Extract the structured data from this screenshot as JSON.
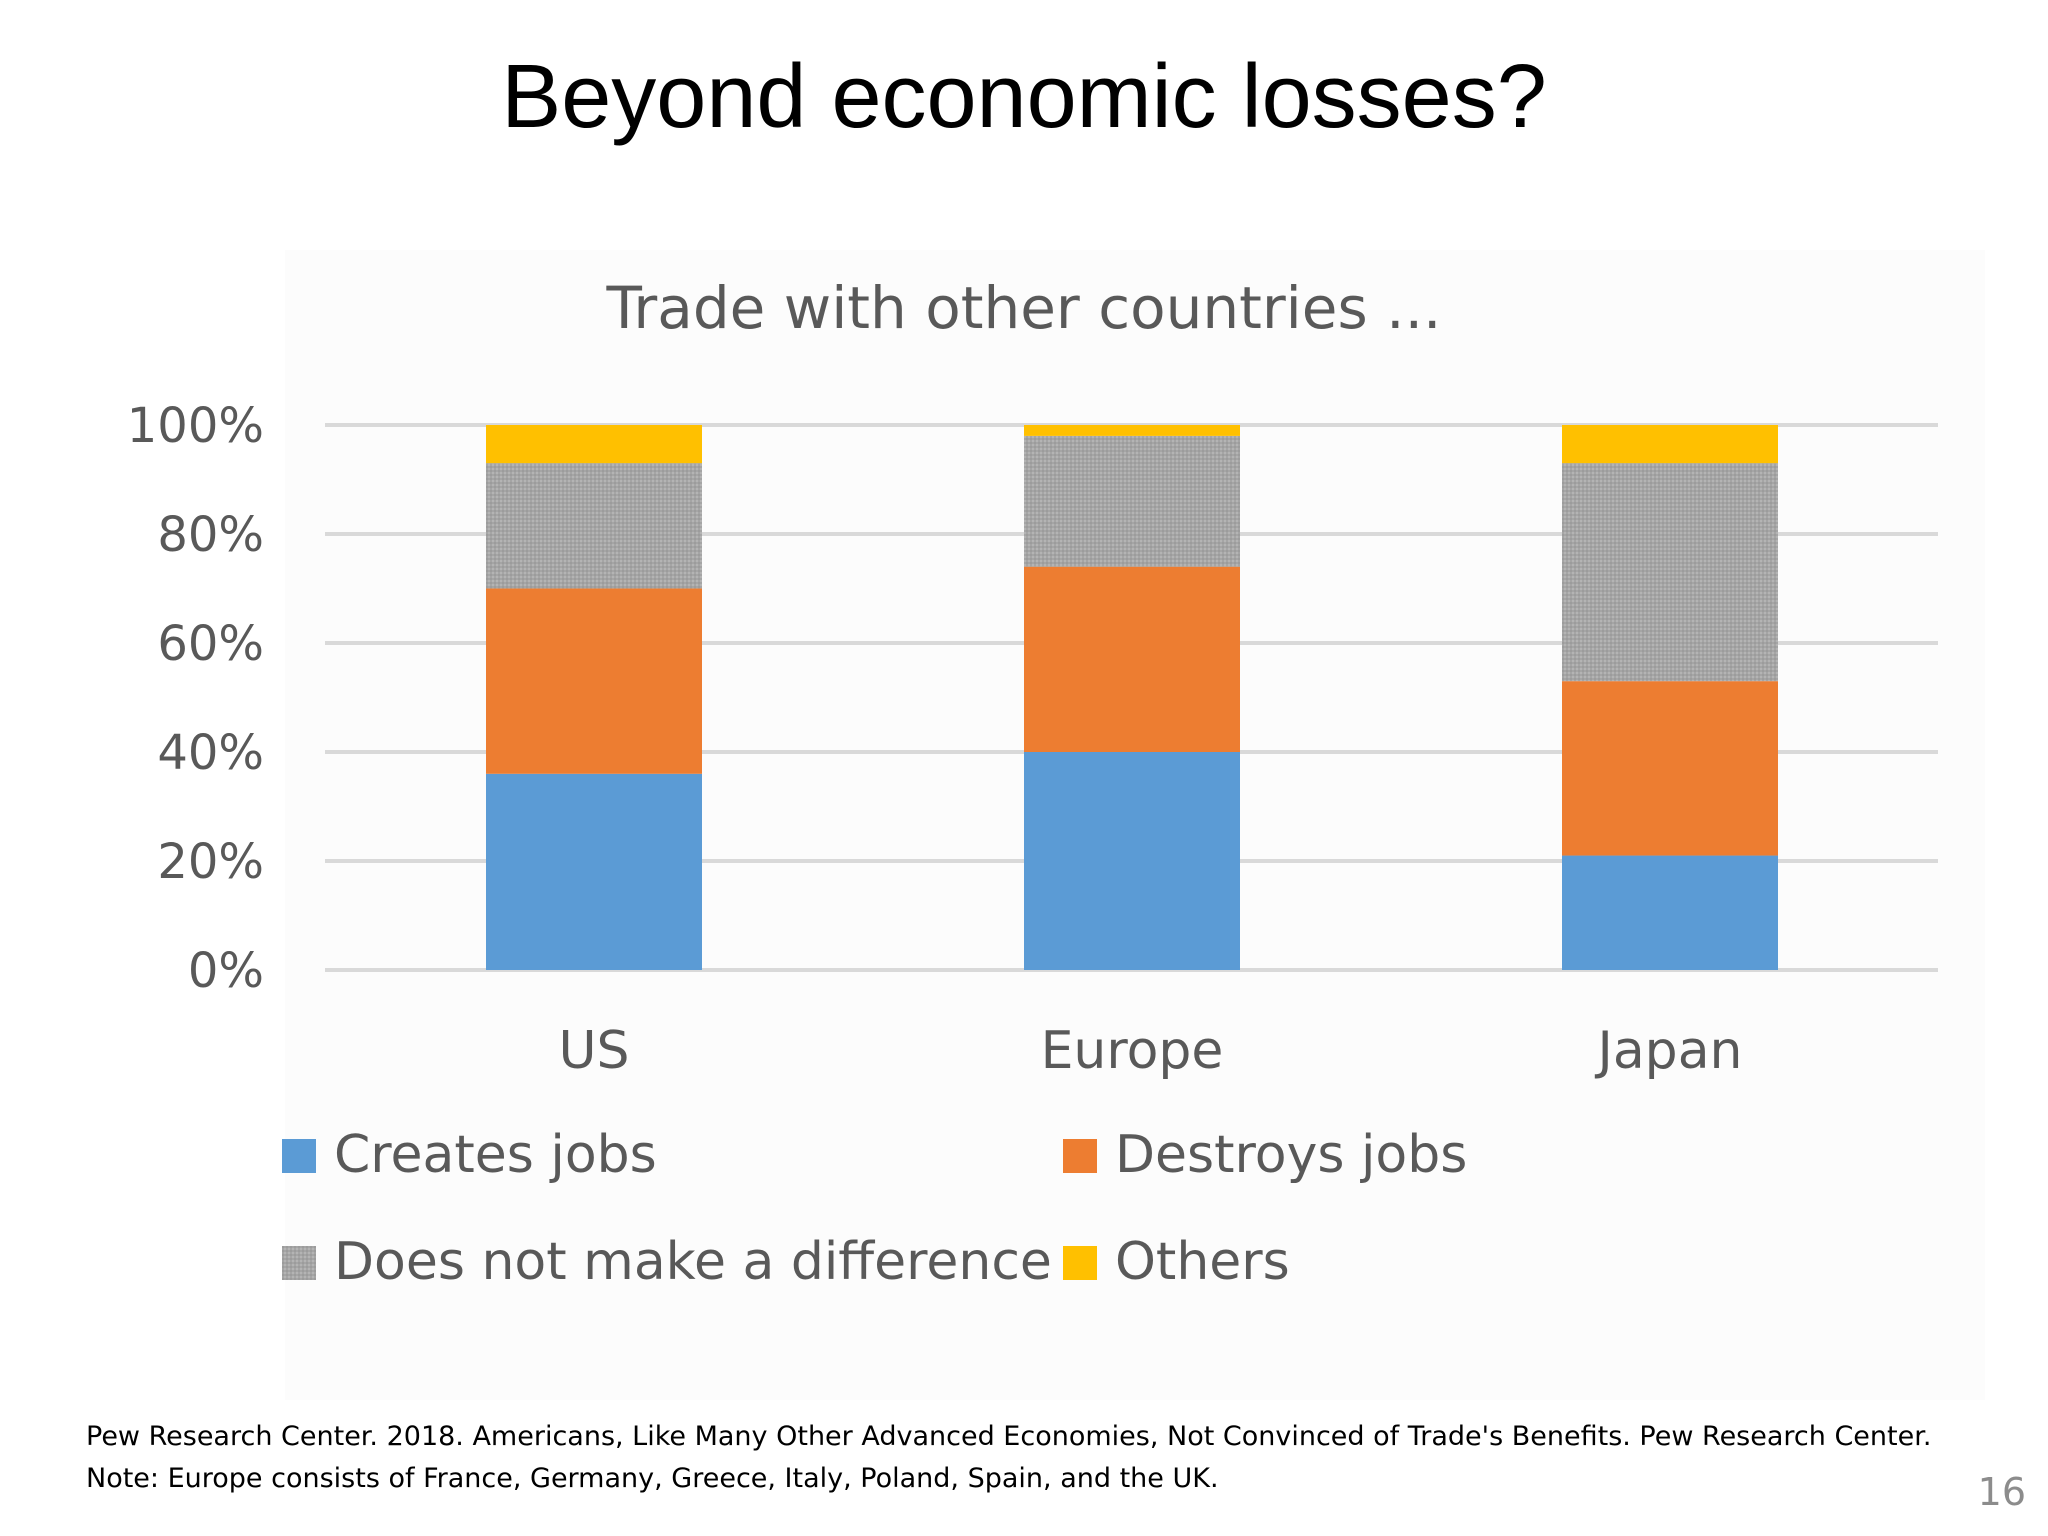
{
  "slide": {
    "title": "Beyond economic losses?",
    "page_number": "16",
    "source_lines": [
      "Pew Research Center. 2018. Americans, Like Many Other Advanced Economies, Not Convinced of Trade's Benefits. Pew Research Center.",
      "Note: Europe consists of France, Germany, Greece, Italy, Poland, Spain, and the UK."
    ]
  },
  "chart_data": {
    "type": "bar",
    "stacked": true,
    "title": "Trade with other countries ...",
    "xlabel": "",
    "ylabel": "",
    "categories": [
      "US",
      "Europe",
      "Japan"
    ],
    "ylim": [
      0,
      100
    ],
    "yticks": [
      "0%",
      "20%",
      "40%",
      "60%",
      "80%",
      "100%"
    ],
    "grid": true,
    "legend_position": "bottom",
    "series": [
      {
        "name": "Creates jobs",
        "values": [
          36,
          40,
          21
        ],
        "color": "#5b9bd5"
      },
      {
        "name": "Destroys jobs",
        "values": [
          34,
          34,
          32
        ],
        "color": "#ed7d31"
      },
      {
        "name": "Does not make a difference",
        "values": [
          23,
          24,
          40
        ],
        "color": "#a5a5a5"
      },
      {
        "name": "Others",
        "values": [
          7,
          2,
          7
        ],
        "color": "#ffc000"
      }
    ]
  }
}
